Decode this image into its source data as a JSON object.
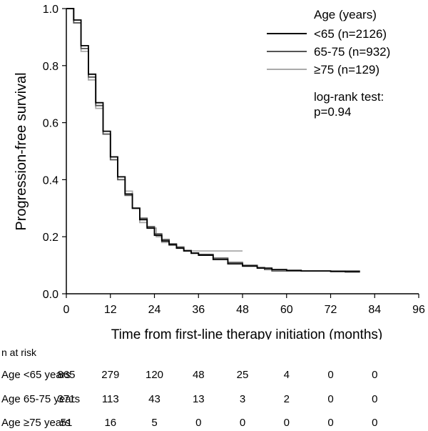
{
  "chart_data": {
    "type": "line",
    "subtype": "kaplan-meier",
    "xlabel": "Time from first-line therapy initiation (months)",
    "ylabel": "Progression-free survival",
    "xlim": [
      0,
      96
    ],
    "ylim": [
      0,
      1.0
    ],
    "x_ticks": [
      "0",
      "12",
      "24",
      "36",
      "48",
      "60",
      "72",
      "84",
      "96"
    ],
    "y_ticks": [
      "0.0",
      "0.2",
      "0.4",
      "0.6",
      "0.8",
      "1.0"
    ],
    "legend": {
      "title": "Age (years)",
      "position": "top-right",
      "annotation_line1": "log-rank test:",
      "annotation_line2": "p=0.94"
    },
    "series": [
      {
        "name": "<65 (n=2126)",
        "color": "#000000",
        "points": [
          [
            0,
            1.0
          ],
          [
            2,
            0.96
          ],
          [
            4,
            0.87
          ],
          [
            6,
            0.77
          ],
          [
            8,
            0.67
          ],
          [
            10,
            0.57
          ],
          [
            12,
            0.48
          ],
          [
            14,
            0.41
          ],
          [
            16,
            0.35
          ],
          [
            18,
            0.3
          ],
          [
            20,
            0.26
          ],
          [
            22,
            0.23
          ],
          [
            24,
            0.205
          ],
          [
            26,
            0.185
          ],
          [
            28,
            0.172
          ],
          [
            30,
            0.16
          ],
          [
            32,
            0.15
          ],
          [
            34,
            0.142
          ],
          [
            36,
            0.135
          ],
          [
            40,
            0.12
          ],
          [
            44,
            0.105
          ],
          [
            48,
            0.097
          ],
          [
            52,
            0.09
          ],
          [
            56,
            0.085
          ],
          [
            60,
            0.082
          ],
          [
            64,
            0.08
          ],
          [
            68,
            0.08
          ],
          [
            72,
            0.078
          ],
          [
            76,
            0.077
          ],
          [
            80,
            0.077
          ]
        ]
      },
      {
        "name": "65-75 (n=932)",
        "color": "#555555",
        "points": [
          [
            0,
            1.0
          ],
          [
            2,
            0.95
          ],
          [
            4,
            0.86
          ],
          [
            6,
            0.76
          ],
          [
            8,
            0.66
          ],
          [
            10,
            0.56
          ],
          [
            12,
            0.47
          ],
          [
            14,
            0.4
          ],
          [
            16,
            0.345
          ],
          [
            18,
            0.3
          ],
          [
            20,
            0.265
          ],
          [
            22,
            0.235
          ],
          [
            24,
            0.21
          ],
          [
            26,
            0.19
          ],
          [
            28,
            0.175
          ],
          [
            30,
            0.163
          ],
          [
            32,
            0.152
          ],
          [
            34,
            0.143
          ],
          [
            36,
            0.138
          ],
          [
            40,
            0.125
          ],
          [
            44,
            0.11
          ],
          [
            48,
            0.1
          ],
          [
            52,
            0.092
          ],
          [
            54,
            0.085
          ],
          [
            56,
            0.08
          ],
          [
            60,
            0.08
          ],
          [
            64,
            0.08
          ],
          [
            70,
            0.08
          ],
          [
            76,
            0.08
          ],
          [
            80,
            0.08
          ]
        ]
      },
      {
        "name": "≥75 (n=129)",
        "color": "#aaaaaa",
        "points": [
          [
            0,
            1.0
          ],
          [
            2,
            0.95
          ],
          [
            4,
            0.85
          ],
          [
            6,
            0.75
          ],
          [
            8,
            0.65
          ],
          [
            10,
            0.56
          ],
          [
            12,
            0.48
          ],
          [
            14,
            0.41
          ],
          [
            16,
            0.36
          ],
          [
            18,
            0.3
          ],
          [
            20,
            0.25
          ],
          [
            22,
            0.235
          ],
          [
            24,
            0.23
          ],
          [
            24.5,
            0.2
          ],
          [
            26,
            0.18
          ],
          [
            28,
            0.17
          ],
          [
            30,
            0.165
          ],
          [
            32,
            0.15
          ],
          [
            36,
            0.15
          ],
          [
            40,
            0.15
          ],
          [
            44,
            0.15
          ],
          [
            48,
            0.15
          ]
        ]
      }
    ]
  },
  "risk_table": {
    "title": "n at risk",
    "times": [
      0,
      12,
      24,
      36,
      48,
      60,
      72,
      84
    ],
    "rows": [
      {
        "label": "Age <65 years",
        "values": [
          "865",
          "279",
          "120",
          "48",
          "25",
          "4",
          "0",
          "0"
        ]
      },
      {
        "label": "Age 65-75 years",
        "values": [
          "371",
          "113",
          "43",
          "13",
          "3",
          "2",
          "0",
          "0"
        ]
      },
      {
        "label": "Age ≥75 years",
        "values": [
          "51",
          "16",
          "5",
          "0",
          "0",
          "0",
          "0",
          "0"
        ]
      }
    ]
  }
}
